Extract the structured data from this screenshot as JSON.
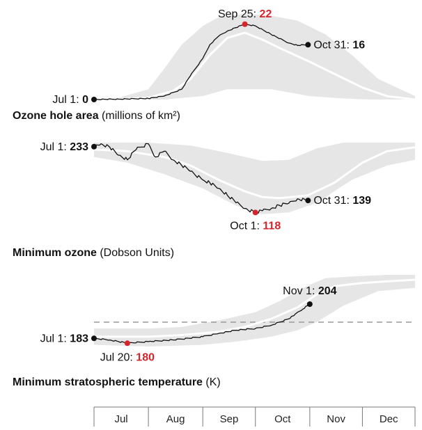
{
  "chart_data": [
    {
      "type": "area",
      "title": "Ozone hole area",
      "unit": "(millions of km²)",
      "x_range": [
        "Jul 1",
        "Dec 31"
      ],
      "ylim": [
        0,
        25
      ],
      "annotations": [
        {
          "date": "Jul 1",
          "value": 0,
          "label_date": "Jul 1:",
          "label_value": "0",
          "color": "#111111"
        },
        {
          "date": "Sep 25",
          "value": 22,
          "label_date": "Sep 25:",
          "label_value": "22",
          "color": "#d6242b"
        },
        {
          "date": "Oct 31",
          "value": 16,
          "label_date": "Oct 31:",
          "label_value": "16",
          "color": "#111111"
        }
      ],
      "series": [
        {
          "kind": "current",
          "x": [
            "Jul 1",
            "Jul 15",
            "Aug 1",
            "Aug 10",
            "Aug 20",
            "Aug 25",
            "Sep 1",
            "Sep 5",
            "Sep 10",
            "Sep 15",
            "Sep 20",
            "Sep 25",
            "Oct 1",
            "Oct 10",
            "Oct 20",
            "Oct 25",
            "Oct 31"
          ],
          "y": [
            0,
            0.1,
            0.3,
            1,
            3,
            7,
            12,
            16,
            18.5,
            20,
            21,
            22,
            21.5,
            19,
            16.5,
            15.8,
            16
          ]
        },
        {
          "kind": "average",
          "x": [
            "Jul 1",
            "Jul 20",
            "Aug 1",
            "Aug 15",
            "Aug 25",
            "Sep 5",
            "Sep 15",
            "Sep 25",
            "Oct 5",
            "Oct 15",
            "Nov 1",
            "Nov 15",
            "Dec 1",
            "Dec 15",
            "Dec 31"
          ],
          "y": [
            0,
            0.2,
            0.5,
            2.5,
            6,
            13,
            18,
            19.5,
            17.5,
            15,
            11,
            7.5,
            3.5,
            1,
            0
          ]
        },
        {
          "kind": "range_high",
          "x": [
            "Jul 1",
            "Jul 15",
            "Aug 1",
            "Aug 10",
            "Aug 20",
            "Sep 1",
            "Sep 10",
            "Sep 25",
            "Oct 10",
            "Oct 25",
            "Nov 10",
            "Nov 25",
            "Dec 10",
            "Dec 31"
          ],
          "y": [
            0,
            0.5,
            3,
            9,
            16,
            21.5,
            24,
            25,
            24.5,
            23,
            19,
            13,
            6,
            1
          ]
        },
        {
          "kind": "range_low",
          "x": [
            "Jul 1",
            "Aug 10",
            "Sep 1",
            "Sep 15",
            "Oct 10",
            "Nov 1",
            "Nov 20",
            "Dec 5",
            "Dec 31"
          ],
          "y": [
            0,
            0,
            1,
            3,
            3,
            1,
            0.3,
            0,
            0
          ]
        }
      ]
    },
    {
      "type": "line",
      "title": "Minimum ozone",
      "unit": "(Dobson Units)",
      "x_range": [
        "Jul 1",
        "Dec 31"
      ],
      "ylim": [
        110,
        240
      ],
      "annotations": [
        {
          "date": "Jul 1",
          "value": 233,
          "label_date": "Jul 1:",
          "label_value": "233",
          "color": "#111111"
        },
        {
          "date": "Oct 1",
          "value": 118,
          "label_date": "Oct 1:",
          "label_value": "118",
          "color": "#d6242b"
        },
        {
          "date": "Oct 31",
          "value": 139,
          "label_date": "Oct 31:",
          "label_value": "139",
          "color": "#111111"
        }
      ],
      "series": [
        {
          "kind": "current",
          "x": [
            "Jul 1",
            "Jul 5",
            "Jul 10",
            "Jul 15",
            "Jul 20",
            "Jul 25",
            "Aug 1",
            "Aug 5",
            "Aug 10",
            "Aug 15",
            "Aug 20",
            "Aug 25",
            "Sep 1",
            "Sep 5",
            "Sep 10",
            "Sep 15",
            "Sep 20",
            "Sep 25",
            "Oct 1",
            "Oct 5",
            "Oct 10",
            "Oct 15",
            "Oct 20",
            "Oct 25",
            "Oct 31"
          ],
          "y": [
            233,
            238,
            232,
            218,
            210,
            228,
            238,
            215,
            225,
            210,
            200,
            190,
            175,
            170,
            160,
            148,
            135,
            125,
            118,
            121,
            125,
            130,
            134,
            142,
            139
          ]
        },
        {
          "kind": "average",
          "x": [
            "Jul 1",
            "Jul 20",
            "Aug 10",
            "Aug 25",
            "Sep 10",
            "Sep 25",
            "Oct 5",
            "Oct 15",
            "Oct 31",
            "Nov 15",
            "Dec 1",
            "Dec 15",
            "Dec 31"
          ],
          "y": [
            228,
            225,
            215,
            200,
            175,
            155,
            145,
            143,
            148,
            170,
            205,
            225,
            232
          ]
        },
        {
          "kind": "range_high",
          "x": [
            "Jul 1",
            "Aug 1",
            "Aug 25",
            "Sep 15",
            "Oct 5",
            "Oct 20",
            "Nov 5",
            "Nov 20",
            "Dec 5",
            "Dec 31"
          ],
          "y": [
            240,
            240,
            235,
            222,
            208,
            210,
            230,
            240,
            240,
            240
          ]
        },
        {
          "kind": "range_low",
          "x": [
            "Jul 1",
            "Jul 20",
            "Aug 10",
            "Sep 1",
            "Sep 20",
            "Oct 5",
            "Oct 20",
            "Nov 5",
            "Nov 25",
            "Dec 15",
            "Dec 31"
          ],
          "y": [
            215,
            205,
            185,
            160,
            130,
            115,
            118,
            135,
            175,
            200,
            210
          ]
        }
      ]
    },
    {
      "type": "line",
      "title": "Minimum stratospheric temperature",
      "unit": "(K)",
      "x_range": [
        "Jul 1",
        "Dec 31"
      ],
      "ylim": [
        175,
        225
      ],
      "reference_line": {
        "style": "dashed"
      },
      "annotations": [
        {
          "date": "Jul 1",
          "value": 183,
          "label_date": "Jul 1:",
          "label_value": "183",
          "color": "#111111"
        },
        {
          "date": "Jul 20",
          "value": 180,
          "label_date": "Jul 20:",
          "label_value": "180",
          "color": "#d6242b"
        },
        {
          "date": "Nov 1",
          "value": 204,
          "label_date": "Nov 1:",
          "label_value": "204",
          "color": "#111111"
        }
      ],
      "series": [
        {
          "kind": "current",
          "x": [
            "Jul 1",
            "Jul 10",
            "Jul 20",
            "Aug 1",
            "Aug 15",
            "Sep 1",
            "Sep 10",
            "Sep 20",
            "Oct 1",
            "Oct 10",
            "Oct 20",
            "Oct 23",
            "Oct 25",
            "Oct 28",
            "Nov 1"
          ],
          "y": [
            183,
            182,
            180,
            181,
            182,
            184,
            186,
            188,
            189,
            191,
            195,
            197,
            199,
            201,
            204
          ]
        },
        {
          "kind": "average",
          "x": [
            "Jul 1",
            "Aug 1",
            "Aug 20",
            "Sep 10",
            "Sep 25",
            "Oct 10",
            "Oct 25",
            "Nov 5",
            "Nov 15",
            "Dec 1",
            "Dec 15",
            "Dec 31"
          ],
          "y": [
            184,
            184,
            185,
            187,
            190,
            195,
            202,
            210,
            215,
            217,
            218,
            219
          ]
        },
        {
          "kind": "range_high",
          "x": [
            "Jul 1",
            "Aug 1",
            "Aug 20",
            "Sep 10",
            "Oct 1",
            "Oct 15",
            "Oct 25",
            "Nov 1",
            "Nov 10",
            "Nov 25",
            "Dec 15",
            "Dec 31"
          ],
          "y": [
            189,
            189,
            190,
            194,
            199,
            206,
            212,
            216,
            220,
            221,
            222,
            222
          ]
        },
        {
          "kind": "range_low",
          "x": [
            "Jul 1",
            "Aug 1",
            "Sep 1",
            "Sep 20",
            "Oct 10",
            "Oct 25",
            "Nov 5",
            "Nov 20",
            "Dec 10",
            "Dec 31"
          ],
          "y": [
            179,
            178,
            179,
            181,
            184,
            188,
            193,
            203,
            212,
            214
          ]
        }
      ]
    }
  ],
  "x_axis": {
    "months": [
      "Jul",
      "Aug",
      "Sep",
      "Oct",
      "Nov",
      "Dec"
    ]
  },
  "colors": {
    "range_fill": "#e6e6e6",
    "average_line": "#ffffff",
    "current_line": "#111111",
    "highlight": "#d6242b",
    "reference_line": "#999999"
  }
}
